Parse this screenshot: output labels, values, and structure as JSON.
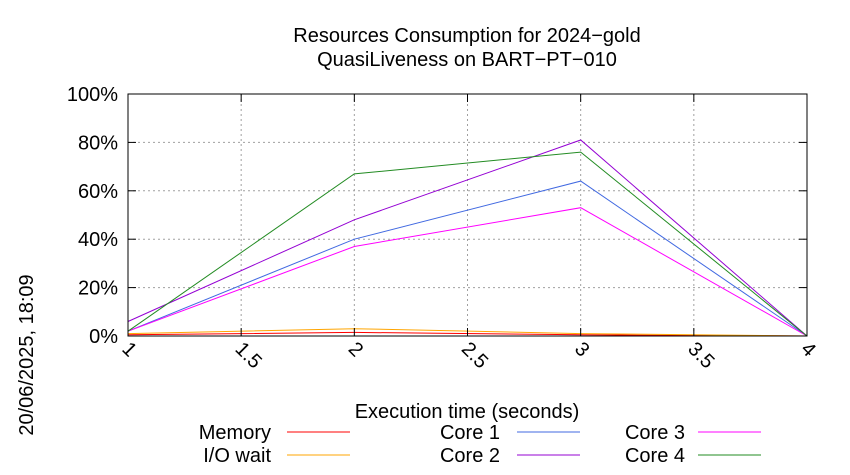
{
  "chart_data": {
    "type": "line",
    "title": "Resources Consumption for 2024−gold",
    "subtitle": "QuasiLiveness on BART−PT−010",
    "xlabel": "Execution time (seconds)",
    "ylabel": "",
    "side_label": "20/06/2025, 18:09",
    "xlim": [
      1,
      4
    ],
    "ylim": [
      0,
      100
    ],
    "x_ticks": [
      "1",
      "1.5",
      "2",
      "2.5",
      "3",
      "3.5",
      "4"
    ],
    "y_ticks": [
      "0%",
      "20%",
      "40%",
      "60%",
      "80%",
      "100%"
    ],
    "grid": true,
    "legend_position": "bottom",
    "x": [
      1,
      2,
      3,
      4
    ],
    "series": [
      {
        "name": "Memory",
        "color": "#ff0000",
        "values": [
          0.5,
          1.5,
          0.5,
          0
        ]
      },
      {
        "name": "I/O wait",
        "color": "#ffa500",
        "values": [
          1,
          3,
          1,
          0
        ]
      },
      {
        "name": "Core 1",
        "color": "#4169e1",
        "values": [
          2,
          40,
          64,
          0
        ]
      },
      {
        "name": "Core 2",
        "color": "#9400d3",
        "values": [
          6,
          48,
          81,
          0
        ]
      },
      {
        "name": "Core 3",
        "color": "#ff00ff",
        "values": [
          2,
          37,
          53,
          0
        ]
      },
      {
        "name": "Core 4",
        "color": "#228b22",
        "values": [
          2,
          67,
          76,
          0
        ]
      }
    ]
  }
}
